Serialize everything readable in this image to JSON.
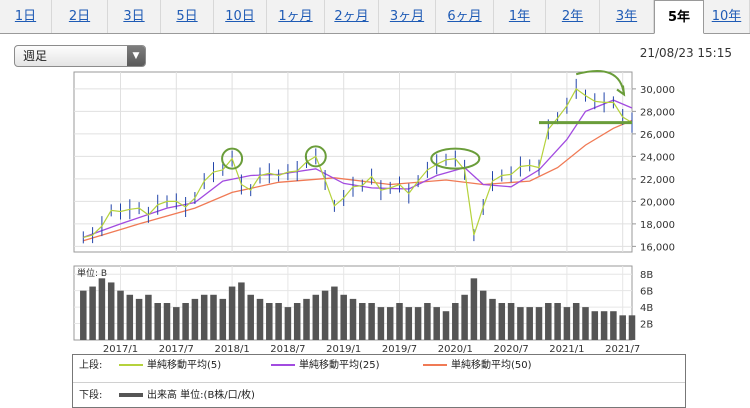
{
  "tabs": [
    "1日",
    "2日",
    "3日",
    "5日",
    "10日",
    "1ヶ月",
    "2ヶ月",
    "3ヶ月",
    "6ヶ月",
    "1年",
    "2年",
    "3年",
    "5年",
    "10年"
  ],
  "active_tab": "5年",
  "period_select": "週足",
  "timestamp": "21/08/23 15:15",
  "colors": {
    "ma5": "#b5d23c",
    "ma25": "#a24be0",
    "ma50": "#f07a55",
    "volume": "#555555",
    "candle": "#2244aa",
    "annotation": "#6a9d3a"
  },
  "legend": {
    "upper_label": "上段:",
    "lower_label": "下段:",
    "ma5": "単純移動平均(5)",
    "ma25": "単純移動平均(25)",
    "ma50": "単純移動平均(50)",
    "volume": "出来高 単位:(B株/口/枚)"
  },
  "chart_data": {
    "type": "line",
    "price_panel": {
      "ylim": [
        15500,
        31500
      ],
      "y_ticks": [
        "16,000",
        "18,000",
        "20,000",
        "22,000",
        "24,000",
        "26,000",
        "28,000",
        "30,000"
      ],
      "x_ticks": [
        "2017/1",
        "2017/7",
        "2018/1",
        "2018/7",
        "2019/1",
        "2019/7",
        "2020/1",
        "2020/7",
        "2021/1",
        "2021/7"
      ],
      "x_range": [
        "2016/8",
        "2021/8"
      ],
      "weekly_close": [
        [
          "2016/9",
          16800
        ],
        [
          "2016/10",
          17000
        ],
        [
          "2016/11",
          17800
        ],
        [
          "2016/12",
          19200
        ],
        [
          "2017/1",
          19100
        ],
        [
          "2017/2",
          19300
        ],
        [
          "2017/3",
          19400
        ],
        [
          "2017/4",
          18800
        ],
        [
          "2017/5",
          19700
        ],
        [
          "2017/6",
          20000
        ],
        [
          "2017/7",
          20000
        ],
        [
          "2017/8",
          19500
        ],
        [
          "2017/9",
          20300
        ],
        [
          "2017/10",
          21800
        ],
        [
          "2017/11",
          22600
        ],
        [
          "2017/12",
          22800
        ],
        [
          "2018/1",
          23800
        ],
        [
          "2018/2",
          21500
        ],
        [
          "2018/3",
          21000
        ],
        [
          "2018/4",
          22300
        ],
        [
          "2018/5",
          22500
        ],
        [
          "2018/6",
          22300
        ],
        [
          "2018/7",
          22600
        ],
        [
          "2018/8",
          22700
        ],
        [
          "2018/9",
          23500
        ],
        [
          "2018/10",
          24000
        ],
        [
          "2018/11",
          21900
        ],
        [
          "2018/12",
          19600
        ],
        [
          "2019/1",
          20300
        ],
        [
          "2019/2",
          21300
        ],
        [
          "2019/3",
          21400
        ],
        [
          "2019/4",
          22200
        ],
        [
          "2019/5",
          21000
        ],
        [
          "2019/6",
          21200
        ],
        [
          "2019/7",
          21500
        ],
        [
          "2019/8",
          20700
        ],
        [
          "2019/9",
          21800
        ],
        [
          "2019/10",
          22800
        ],
        [
          "2019/11",
          23300
        ],
        [
          "2019/12",
          23700
        ],
        [
          "2020/1",
          23800
        ],
        [
          "2020/2",
          22800
        ],
        [
          "2020/3",
          17000
        ],
        [
          "2020/4",
          19500
        ],
        [
          "2020/5",
          21800
        ],
        [
          "2020/6",
          22300
        ],
        [
          "2020/7",
          22400
        ],
        [
          "2020/8",
          23100
        ],
        [
          "2020/9",
          23200
        ],
        [
          "2020/10",
          23000
        ],
        [
          "2020/11",
          26400
        ],
        [
          "2020/12",
          27400
        ],
        [
          "2021/1",
          28500
        ],
        [
          "2021/2",
          30000
        ],
        [
          "2021/3",
          29400
        ],
        [
          "2021/4",
          28900
        ],
        [
          "2021/5",
          28800
        ],
        [
          "2021/6",
          28800
        ],
        [
          "2021/7",
          27500
        ],
        [
          "2021/8",
          27000
        ]
      ],
      "ma25": [
        [
          "2016/9",
          16800
        ],
        [
          "2017/1",
          18000
        ],
        [
          "2017/6",
          19400
        ],
        [
          "2017/9",
          19900
        ],
        [
          "2017/12",
          21800
        ],
        [
          "2018/3",
          22300
        ],
        [
          "2018/6",
          22400
        ],
        [
          "2018/10",
          22900
        ],
        [
          "2019/1",
          21600
        ],
        [
          "2019/4",
          21200
        ],
        [
          "2019/8",
          21100
        ],
        [
          "2019/11",
          22300
        ],
        [
          "2020/2",
          23000
        ],
        [
          "2020/4",
          21500
        ],
        [
          "2020/7",
          21300
        ],
        [
          "2020/10",
          22800
        ],
        [
          "2021/1",
          25500
        ],
        [
          "2021/3",
          28000
        ],
        [
          "2021/6",
          29000
        ],
        [
          "2021/8",
          28300
        ]
      ],
      "ma50": [
        [
          "2016/9",
          16500
        ],
        [
          "2017/3",
          18000
        ],
        [
          "2017/9",
          19400
        ],
        [
          "2018/1",
          20800
        ],
        [
          "2018/6",
          21700
        ],
        [
          "2018/12",
          22100
        ],
        [
          "2019/6",
          21500
        ],
        [
          "2019/12",
          21900
        ],
        [
          "2020/4",
          21500
        ],
        [
          "2020/9",
          21800
        ],
        [
          "2020/12",
          23000
        ],
        [
          "2021/3",
          25000
        ],
        [
          "2021/6",
          26500
        ],
        [
          "2021/8",
          27200
        ]
      ],
      "annotations": {
        "circled_peaks": [
          "2018/1",
          "2018/10",
          "2020/1"
        ],
        "horizontal_line": 27000,
        "trend_arrow": "down"
      }
    },
    "volume_panel": {
      "unit_label": "単位: B",
      "ylim": [
        0,
        9
      ],
      "y_ticks": [
        "2B",
        "4B",
        "6B",
        "8B"
      ],
      "weekly_volume": [
        6.0,
        6.5,
        7.5,
        7.0,
        6.0,
        5.5,
        5.0,
        5.5,
        4.5,
        4.5,
        4.0,
        4.5,
        5.0,
        5.5,
        5.5,
        5.0,
        6.5,
        7.0,
        5.5,
        5.0,
        4.5,
        4.5,
        4.0,
        4.5,
        5.0,
        5.5,
        6.0,
        6.5,
        5.5,
        5.0,
        4.5,
        4.5,
        4.0,
        4.0,
        4.5,
        4.0,
        4.0,
        4.5,
        4.0,
        3.5,
        4.5,
        5.5,
        7.5,
        6.0,
        5.0,
        4.5,
        4.5,
        4.0,
        4.0,
        4.0,
        4.5,
        4.5,
        4.0,
        4.5,
        4.0,
        3.5,
        3.5,
        3.5,
        3.0,
        3.0
      ]
    }
  }
}
